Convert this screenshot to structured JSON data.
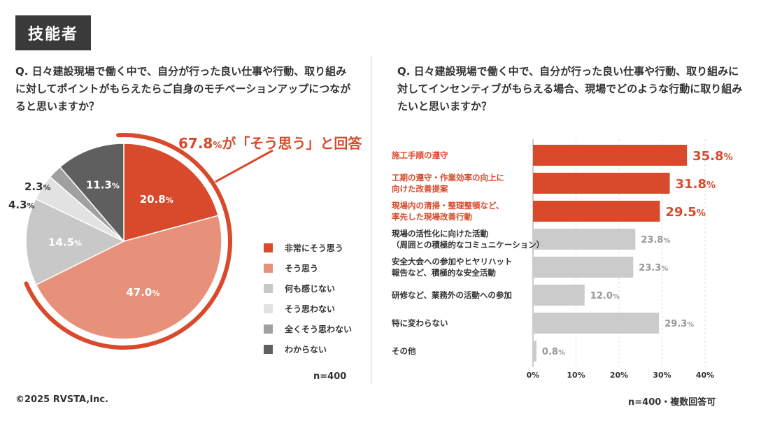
{
  "tag": "技能者",
  "left": {
    "question": "Q. 日々建設現場で働く中で、自分が行った良い仕事や行動、取り組みに対してポイントがもらえたらご自身のモチベーションアップにつながると思いますか？",
    "callout_value": "67.8",
    "callout_unit": "%",
    "callout_text": "が「そう思う」と回答",
    "n": "n=400"
  },
  "right": {
    "question": "Q. 日々建設現場で働く中で、自分が行った良い仕事や行動、取り組みに対してインセンティブがもらえる場合、現場でどのような行動に取り組みたいと思いますか？",
    "n": "n=400・複数回答可"
  },
  "copyright": "©2025 RVSTA,Inc.",
  "colors": {
    "red": "#d84a2b",
    "salmon": "#e8917a",
    "gray": "#c8c8c8",
    "lightgray": "#e2e2e2",
    "midgray": "#a0a0a0",
    "darkgray": "#5f5f5f",
    "bar_gray": "#cbcbcb",
    "text_gray": "#999999"
  },
  "chart_data": [
    {
      "type": "pie",
      "labels": [
        "非常にそう思う",
        "そう思う",
        "何も感じない",
        "そう思わない",
        "全くそう思わない",
        "わからない"
      ],
      "values": [
        20.8,
        47.0,
        14.5,
        4.3,
        2.3,
        11.3
      ],
      "value_labels": [
        "20.8",
        "47.0",
        "14.5",
        "4.3",
        "2.3",
        "11.3"
      ],
      "unit": "%",
      "legend_position": "right"
    },
    {
      "type": "bar",
      "orientation": "horizontal",
      "categories": [
        [
          "施工手順の遵守"
        ],
        [
          "工期の遵守・作業効率の向上に",
          "向けた改善提案"
        ],
        [
          "現場内の清掃・整理整頓など、",
          "率先した現場改善行動"
        ],
        [
          "現場の活性化に向けた活動",
          "（周囲との積極的なコミュニケーション）"
        ],
        [
          "安全大会への参加やヒヤリハット",
          "報告など、積極的な安全活動"
        ],
        [
          "研修など、業務外の活動への参加"
        ],
        [
          "特に変わらない"
        ],
        [
          "その他"
        ]
      ],
      "values": [
        35.8,
        31.8,
        29.5,
        23.8,
        23.3,
        12.0,
        29.3,
        0.8
      ],
      "value_labels": [
        "35.8",
        "31.8",
        "29.5",
        "23.8",
        "23.3",
        "12.0",
        "29.3",
        "0.8"
      ],
      "highlighted": [
        true,
        true,
        true,
        false,
        false,
        false,
        false,
        false
      ],
      "unit": "%",
      "xlim": [
        0,
        40
      ],
      "x_ticks": [
        "0%",
        "10%",
        "20%",
        "30%",
        "40%"
      ],
      "grid": true
    }
  ]
}
